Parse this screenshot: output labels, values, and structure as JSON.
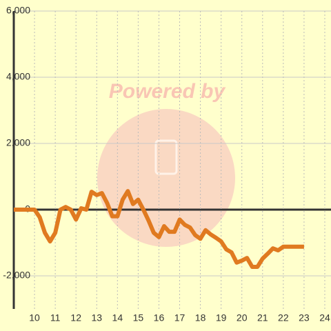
{
  "chart_data": {
    "type": "line",
    "watermark": "Powered by",
    "x": [
      9,
      9.25,
      9.5,
      9.75,
      10,
      10.25,
      10.5,
      10.75,
      11,
      11.25,
      11.5,
      11.75,
      12,
      12.25,
      12.5,
      12.75,
      13,
      13.25,
      13.5,
      13.75,
      14,
      14.25,
      14.5,
      14.75,
      15,
      15.25,
      15.5,
      15.75,
      16,
      16.25,
      16.5,
      16.75,
      17,
      17.25,
      17.5,
      17.75,
      18,
      18.25,
      18.5,
      18.75,
      19,
      19.25,
      19.5,
      19.75,
      20,
      20.25,
      20.5,
      20.75,
      21,
      21.25,
      21.5,
      21.75,
      22,
      22.25,
      22.5,
      22.75,
      23
    ],
    "series": [
      {
        "color": "#e07a20",
        "values": [
          0,
          0,
          0,
          0,
          0,
          -230,
          -700,
          -960,
          -700,
          0,
          80,
          0,
          -300,
          40,
          0,
          540,
          440,
          500,
          200,
          -200,
          -200,
          300,
          560,
          170,
          300,
          0,
          -330,
          -700,
          -830,
          -500,
          -670,
          -670,
          -300,
          -460,
          -540,
          -770,
          -880,
          -620,
          -750,
          -850,
          -960,
          -1200,
          -1290,
          -1600,
          -1540,
          -1460,
          -1730,
          -1730,
          -1480,
          -1330,
          -1170,
          -1230,
          -1120,
          -1120,
          -1120,
          -1120,
          -1120
        ]
      }
    ],
    "xlim": [
      9,
      24.3
    ],
    "ylim": [
      -3000,
      6000
    ],
    "xticks": [
      10,
      11,
      12,
      13,
      14,
      15,
      16,
      17,
      18,
      19,
      20,
      21,
      22,
      23,
      24
    ],
    "yticks": [
      {
        "value": -2000,
        "label": "-2,000"
      },
      0,
      {
        "value": 2000,
        "label": "2,000"
      },
      {
        "value": 4000,
        "label": "4,000"
      },
      {
        "value": 6000,
        "label": "6,000"
      }
    ],
    "grid": true
  }
}
